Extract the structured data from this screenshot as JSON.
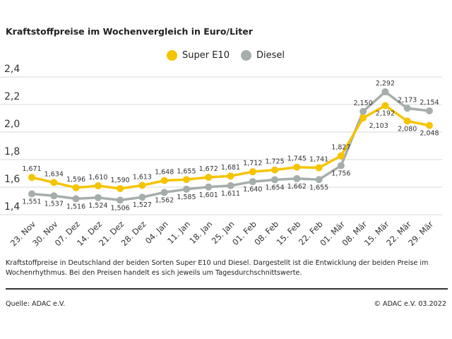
{
  "title": "Kraftstoffpreise im Wochenvergleich in Euro/Liter",
  "note": "Kraftstoffpreise in Deutschland der beiden Sorten Super E10 und Diesel. Dargestellt ist die Entwicklung der beiden Preise im Wochenrhythmus. Bei den Preisen handelt es sich jeweils um Tagesdurchschnittswerte.",
  "source": "Quelle: ADAC e.V.",
  "copyright": "© ADAC e.V. 03.2022",
  "chart_data": {
    "type": "line",
    "title": "Kraftstoffpreise im Wochenvergleich in Euro/Liter",
    "categories": [
      "23. Nov",
      "30. Nov",
      "07. Dez",
      "14. Dez",
      "21. Dez",
      "28. Dez",
      "04. Jan",
      "11. Jan",
      "18. Jan",
      "25. Jan",
      "01. Feb",
      "08. Feb",
      "15. Feb",
      "22. Feb",
      "01. Mär",
      "08. Mär",
      "15. Mär",
      "22. Mär",
      "29. Mär"
    ],
    "yticks": [
      "1,4",
      "1,6",
      "1,8",
      "2,0",
      "2,2",
      "2,4"
    ],
    "ylim": [
      1.4,
      2.4
    ],
    "grid": true,
    "legend": "top",
    "series": [
      {
        "name": "Super E10",
        "color": "#f5c400",
        "values": [
          1.671,
          1.634,
          1.596,
          1.61,
          1.59,
          1.613,
          1.648,
          1.655,
          1.672,
          1.681,
          1.712,
          1.725,
          1.745,
          1.741,
          1.827,
          2.103,
          2.192,
          2.08,
          2.048
        ]
      },
      {
        "name": "Diesel",
        "color": "#a5aeac",
        "values": [
          1.551,
          1.537,
          1.516,
          1.524,
          1.506,
          1.527,
          1.562,
          1.585,
          1.601,
          1.611,
          1.64,
          1.654,
          1.662,
          1.655,
          1.756,
          2.15,
          2.292,
          2.173,
          2.154
        ]
      }
    ]
  }
}
